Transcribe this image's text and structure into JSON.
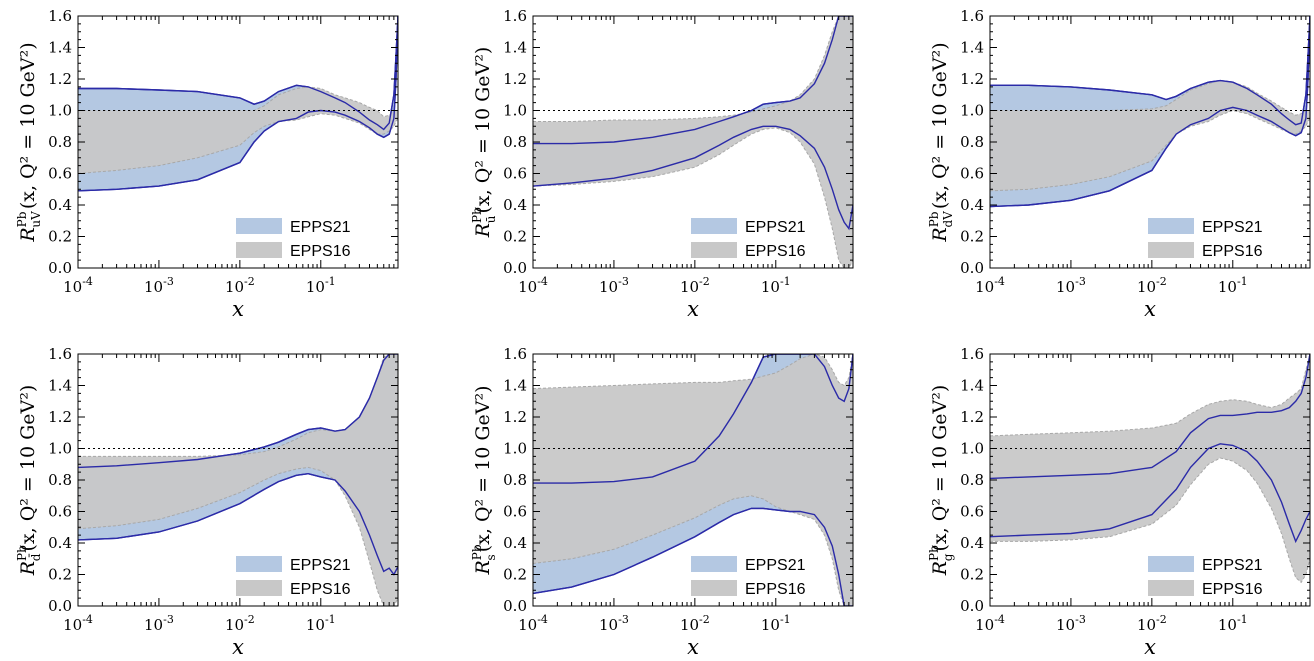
{
  "colors": {
    "epps21_fill": "#b4c8e2",
    "epps21_line": "#2b2ba8",
    "epps16_fill": "#c8c8c8",
    "epps16_line": "#a8a8a8"
  },
  "chart_data": [
    {
      "type": "area",
      "name": "uV",
      "ylabel": {
        "R": "R",
        "sup": "Pb",
        "sub": "u",
        "subsub": "V",
        "args": "(x, Q² = 10 GeV²)"
      },
      "xlabel": "x",
      "xscale": "log",
      "xlim": [
        0.0001,
        0.9
      ],
      "ylim": [
        0,
        1.6
      ],
      "grid": false,
      "xticks": [
        "10",
        "10",
        "10",
        "10"
      ],
      "xtick_exps": [
        "-4",
        "-3",
        "-2",
        "-1"
      ],
      "yticks": [
        "0.0",
        "0.2",
        "0.4",
        "0.6",
        "0.8",
        "1.0",
        "1.2",
        "1.4",
        "1.6"
      ],
      "legend": {
        "position": "bottom-right",
        "entries": [
          "EPPS21",
          "EPPS16"
        ]
      },
      "x": [
        0.0001,
        0.0003,
        0.001,
        0.003,
        0.01,
        0.015,
        0.02,
        0.03,
        0.05,
        0.07,
        0.1,
        0.15,
        0.2,
        0.3,
        0.4,
        0.5,
        0.6,
        0.7,
        0.8,
        0.85,
        0.9
      ],
      "series": [
        {
          "name": "EPPS21",
          "upper": [
            1.14,
            1.14,
            1.13,
            1.12,
            1.08,
            1.04,
            1.06,
            1.12,
            1.16,
            1.15,
            1.12,
            1.08,
            1.05,
            0.99,
            0.94,
            0.91,
            0.88,
            0.92,
            1.1,
            1.35,
            1.6
          ],
          "lower": [
            0.49,
            0.5,
            0.52,
            0.56,
            0.67,
            0.8,
            0.87,
            0.93,
            0.95,
            0.99,
            1.0,
            0.99,
            0.97,
            0.93,
            0.89,
            0.85,
            0.83,
            0.85,
            0.95,
            1.2,
            1.6
          ]
        },
        {
          "name": "EPPS16",
          "upper": [
            1.0,
            1.0,
            1.0,
            1.0,
            1.0,
            1.0,
            1.03,
            1.1,
            1.14,
            1.15,
            1.14,
            1.1,
            1.08,
            1.05,
            1.02,
            1.0,
            0.96,
            0.97,
            1.0,
            1.0,
            1.0
          ],
          "lower": [
            0.6,
            0.62,
            0.65,
            0.7,
            0.78,
            0.86,
            0.9,
            0.93,
            0.94,
            0.96,
            0.98,
            0.97,
            0.95,
            0.92,
            0.88,
            0.85,
            0.85,
            0.87,
            0.9,
            0.93,
            0.95
          ]
        }
      ]
    },
    {
      "type": "area",
      "name": "ubar",
      "ylabel": {
        "R": "R",
        "sup": "Pb",
        "sub": "ū",
        "subsub": "",
        "args": "(x, Q² = 10 GeV²)"
      },
      "xlabel": "x",
      "xscale": "log",
      "xlim": [
        0.0001,
        0.9
      ],
      "ylim": [
        0,
        1.6
      ],
      "grid": false,
      "xticks": [
        "10",
        "10",
        "10",
        "10"
      ],
      "xtick_exps": [
        "-4",
        "-3",
        "-2",
        "-1"
      ],
      "yticks": [
        "0.0",
        "0.2",
        "0.4",
        "0.6",
        "0.8",
        "1.0",
        "1.2",
        "1.4",
        "1.6"
      ],
      "legend": {
        "position": "bottom-right",
        "entries": [
          "EPPS21",
          "EPPS16"
        ]
      },
      "x": [
        0.0001,
        0.0003,
        0.001,
        0.003,
        0.01,
        0.02,
        0.03,
        0.05,
        0.07,
        0.1,
        0.15,
        0.2,
        0.3,
        0.4,
        0.5,
        0.6,
        0.7,
        0.8,
        0.9
      ],
      "series": [
        {
          "name": "EPPS21",
          "upper": [
            0.79,
            0.79,
            0.8,
            0.83,
            0.88,
            0.93,
            0.96,
            1.0,
            1.04,
            1.05,
            1.06,
            1.08,
            1.17,
            1.3,
            1.45,
            1.6,
            1.6,
            1.6,
            1.6
          ],
          "lower": [
            0.52,
            0.54,
            0.57,
            0.62,
            0.7,
            0.78,
            0.83,
            0.88,
            0.9,
            0.9,
            0.88,
            0.84,
            0.76,
            0.64,
            0.5,
            0.37,
            0.29,
            0.25,
            0.4
          ]
        },
        {
          "name": "EPPS16",
          "upper": [
            0.93,
            0.93,
            0.94,
            0.94,
            0.95,
            0.96,
            0.97,
            0.99,
            1.01,
            1.03,
            1.06,
            1.1,
            1.2,
            1.35,
            1.5,
            1.6,
            1.6,
            1.6,
            1.6
          ],
          "lower": [
            0.52,
            0.53,
            0.55,
            0.58,
            0.64,
            0.72,
            0.78,
            0.85,
            0.88,
            0.89,
            0.86,
            0.8,
            0.66,
            0.45,
            0.25,
            0.05,
            0.0,
            0.0,
            0.05
          ]
        }
      ]
    },
    {
      "type": "area",
      "name": "dV",
      "ylabel": {
        "R": "R",
        "sup": "Pb",
        "sub": "d",
        "subsub": "V",
        "args": "(x, Q² = 10 GeV²)"
      },
      "xlabel": "x",
      "xscale": "log",
      "xlim": [
        0.0001,
        0.9
      ],
      "ylim": [
        0,
        1.6
      ],
      "grid": false,
      "xticks": [
        "10",
        "10",
        "10",
        "10"
      ],
      "xtick_exps": [
        "-4",
        "-3",
        "-2",
        "-1"
      ],
      "yticks": [
        "0.0",
        "0.2",
        "0.4",
        "0.6",
        "0.8",
        "1.0",
        "1.2",
        "1.4",
        "1.6"
      ],
      "legend": {
        "position": "bottom-right",
        "entries": [
          "EPPS21",
          "EPPS16"
        ]
      },
      "x": [
        0.0001,
        0.0003,
        0.001,
        0.003,
        0.01,
        0.015,
        0.02,
        0.03,
        0.05,
        0.07,
        0.1,
        0.15,
        0.2,
        0.3,
        0.4,
        0.5,
        0.6,
        0.7,
        0.8,
        0.85,
        0.9
      ],
      "series": [
        {
          "name": "EPPS21",
          "upper": [
            1.16,
            1.16,
            1.15,
            1.13,
            1.1,
            1.07,
            1.09,
            1.14,
            1.18,
            1.19,
            1.18,
            1.14,
            1.1,
            1.04,
            0.98,
            0.94,
            0.91,
            0.92,
            1.1,
            1.35,
            1.6
          ],
          "lower": [
            0.39,
            0.4,
            0.43,
            0.49,
            0.62,
            0.76,
            0.85,
            0.91,
            0.95,
            1.0,
            1.02,
            1.0,
            0.97,
            0.93,
            0.89,
            0.86,
            0.84,
            0.86,
            0.95,
            1.2,
            1.6
          ]
        },
        {
          "name": "EPPS16",
          "upper": [
            1.0,
            1.0,
            1.0,
            1.0,
            1.01,
            1.03,
            1.07,
            1.13,
            1.17,
            1.19,
            1.18,
            1.15,
            1.11,
            1.06,
            1.02,
            0.99,
            0.97,
            0.98,
            1.0,
            1.0,
            1.0
          ],
          "lower": [
            0.49,
            0.5,
            0.53,
            0.58,
            0.68,
            0.78,
            0.85,
            0.9,
            0.93,
            0.97,
            1.0,
            0.98,
            0.95,
            0.91,
            0.88,
            0.86,
            0.85,
            0.87,
            0.9,
            0.93,
            0.95
          ]
        }
      ]
    },
    {
      "type": "area",
      "name": "dbar",
      "ylabel": {
        "R": "R",
        "sup": "Pb",
        "sub": "d̄",
        "subsub": "",
        "args": "(x, Q² = 10 GeV²)"
      },
      "xlabel": "x",
      "xscale": "log",
      "xlim": [
        0.0001,
        0.9
      ],
      "ylim": [
        0,
        1.6
      ],
      "grid": false,
      "xticks": [
        "10",
        "10",
        "10",
        "10"
      ],
      "xtick_exps": [
        "-4",
        "-3",
        "-2",
        "-1"
      ],
      "yticks": [
        "0.0",
        "0.2",
        "0.4",
        "0.6",
        "0.8",
        "1.0",
        "1.2",
        "1.4",
        "1.6"
      ],
      "legend": {
        "position": "bottom-right",
        "entries": [
          "EPPS21",
          "EPPS16"
        ]
      },
      "x": [
        0.0001,
        0.0003,
        0.001,
        0.003,
        0.01,
        0.02,
        0.03,
        0.05,
        0.07,
        0.1,
        0.15,
        0.2,
        0.3,
        0.4,
        0.5,
        0.6,
        0.7,
        0.8,
        0.9
      ],
      "series": [
        {
          "name": "EPPS21",
          "upper": [
            0.88,
            0.89,
            0.91,
            0.93,
            0.97,
            1.01,
            1.04,
            1.09,
            1.12,
            1.13,
            1.11,
            1.12,
            1.2,
            1.32,
            1.45,
            1.56,
            1.6,
            1.6,
            1.6
          ],
          "lower": [
            0.42,
            0.43,
            0.47,
            0.54,
            0.65,
            0.74,
            0.79,
            0.83,
            0.84,
            0.82,
            0.8,
            0.73,
            0.6,
            0.45,
            0.32,
            0.22,
            0.24,
            0.2,
            0.25
          ]
        },
        {
          "name": "EPPS16",
          "upper": [
            0.95,
            0.95,
            0.95,
            0.95,
            0.96,
            0.98,
            1.01,
            1.06,
            1.1,
            1.12,
            1.11,
            1.12,
            1.2,
            1.32,
            1.45,
            1.58,
            1.6,
            1.6,
            1.6
          ],
          "lower": [
            0.49,
            0.51,
            0.55,
            0.62,
            0.72,
            0.8,
            0.84,
            0.87,
            0.88,
            0.86,
            0.8,
            0.7,
            0.5,
            0.28,
            0.1,
            0.0,
            0.0,
            0.0,
            0.05
          ]
        }
      ]
    },
    {
      "type": "area",
      "name": "s",
      "ylabel": {
        "R": "R",
        "sup": "Pb",
        "sub": "s",
        "subsub": "",
        "args": "(x, Q² = 10 GeV²)"
      },
      "xlabel": "x",
      "xscale": "log",
      "xlim": [
        0.0001,
        0.9
      ],
      "ylim": [
        0,
        1.6
      ],
      "grid": false,
      "xticks": [
        "10",
        "10",
        "10",
        "10"
      ],
      "xtick_exps": [
        "-4",
        "-3",
        "-2",
        "-1"
      ],
      "yticks": [
        "0.0",
        "0.2",
        "0.4",
        "0.6",
        "0.8",
        "1.0",
        "1.2",
        "1.4",
        "1.6"
      ],
      "legend": {
        "position": "bottom-right",
        "entries": [
          "EPPS21",
          "EPPS16"
        ]
      },
      "x": [
        0.0001,
        0.0003,
        0.001,
        0.003,
        0.01,
        0.02,
        0.03,
        0.05,
        0.07,
        0.1,
        0.15,
        0.2,
        0.3,
        0.4,
        0.5,
        0.6,
        0.7,
        0.8,
        0.9
      ],
      "series": [
        {
          "name": "EPPS21",
          "upper": [
            0.78,
            0.78,
            0.79,
            0.82,
            0.92,
            1.08,
            1.22,
            1.42,
            1.58,
            1.6,
            1.6,
            1.6,
            1.6,
            1.52,
            1.4,
            1.32,
            1.3,
            1.38,
            1.6
          ],
          "lower": [
            0.08,
            0.12,
            0.2,
            0.31,
            0.44,
            0.53,
            0.58,
            0.62,
            0.62,
            0.61,
            0.6,
            0.6,
            0.58,
            0.5,
            0.38,
            0.2,
            0.0,
            0.0,
            0.0
          ]
        },
        {
          "name": "EPPS16",
          "upper": [
            1.38,
            1.39,
            1.4,
            1.41,
            1.42,
            1.42,
            1.43,
            1.44,
            1.46,
            1.48,
            1.53,
            1.57,
            1.6,
            1.58,
            1.5,
            1.42,
            1.4,
            1.45,
            1.6
          ],
          "lower": [
            0.27,
            0.3,
            0.36,
            0.45,
            0.56,
            0.64,
            0.68,
            0.7,
            0.68,
            0.63,
            0.6,
            0.58,
            0.55,
            0.45,
            0.3,
            0.1,
            0.0,
            0.0,
            0.0
          ]
        }
      ]
    },
    {
      "type": "area",
      "name": "g",
      "ylabel": {
        "R": "R",
        "sup": "Pb",
        "sub": "g",
        "subsub": "",
        "args": "(x, Q² = 10 GeV²)"
      },
      "xlabel": "x",
      "xscale": "log",
      "xlim": [
        0.0001,
        0.9
      ],
      "ylim": [
        0,
        1.6
      ],
      "grid": false,
      "xticks": [
        "10",
        "10",
        "10",
        "10"
      ],
      "xtick_exps": [
        "-4",
        "-3",
        "-2",
        "-1"
      ],
      "yticks": [
        "0.0",
        "0.2",
        "0.4",
        "0.6",
        "0.8",
        "1.0",
        "1.2",
        "1.4",
        "1.6"
      ],
      "legend": {
        "position": "bottom-right",
        "entries": [
          "EPPS21",
          "EPPS16"
        ]
      },
      "x": [
        0.0001,
        0.0003,
        0.001,
        0.003,
        0.01,
        0.02,
        0.03,
        0.05,
        0.07,
        0.1,
        0.15,
        0.2,
        0.3,
        0.4,
        0.5,
        0.6,
        0.7,
        0.8,
        0.9
      ],
      "series": [
        {
          "name": "EPPS21",
          "upper": [
            0.81,
            0.82,
            0.83,
            0.84,
            0.88,
            0.98,
            1.1,
            1.19,
            1.21,
            1.21,
            1.22,
            1.23,
            1.23,
            1.24,
            1.26,
            1.3,
            1.35,
            1.45,
            1.6
          ],
          "lower": [
            0.44,
            0.45,
            0.46,
            0.49,
            0.58,
            0.74,
            0.88,
            1.0,
            1.03,
            1.02,
            0.98,
            0.92,
            0.8,
            0.66,
            0.52,
            0.41,
            0.48,
            0.55,
            0.6
          ]
        },
        {
          "name": "EPPS16",
          "upper": [
            1.08,
            1.09,
            1.1,
            1.11,
            1.13,
            1.16,
            1.22,
            1.28,
            1.3,
            1.31,
            1.3,
            1.28,
            1.26,
            1.28,
            1.32,
            1.35,
            1.38,
            1.5,
            1.6
          ],
          "lower": [
            0.41,
            0.41,
            0.42,
            0.44,
            0.52,
            0.64,
            0.77,
            0.9,
            0.94,
            0.92,
            0.86,
            0.78,
            0.62,
            0.46,
            0.3,
            0.18,
            0.15,
            0.2,
            0.3
          ]
        }
      ]
    }
  ]
}
